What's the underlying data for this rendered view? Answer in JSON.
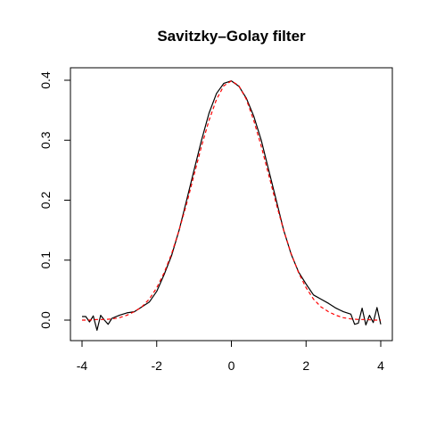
{
  "chart_data": {
    "type": "line",
    "title": "Savitzky–Golay filter",
    "xlabel": "",
    "ylabel": "",
    "xlim": [
      -4,
      4
    ],
    "ylim": [
      0,
      0.4
    ],
    "x_ticks": [
      -4,
      -2,
      0,
      2,
      4
    ],
    "y_ticks": [
      0.0,
      0.1,
      0.2,
      0.3,
      0.4
    ],
    "x_tick_labels": [
      "-4",
      "-2",
      "0",
      "2",
      "4"
    ],
    "y_tick_labels": [
      "0.0",
      "0.1",
      "0.2",
      "0.3",
      "0.4"
    ],
    "grid": false,
    "legend": "none",
    "series": [
      {
        "style": "solid",
        "color": "#000000",
        "x": [
          -4.0,
          -3.9,
          -3.8,
          -3.7,
          -3.6,
          -3.5,
          -3.4,
          -3.3,
          -3.2,
          -3.0,
          -2.8,
          -2.6,
          -2.4,
          -2.2,
          -2.0,
          -1.8,
          -1.6,
          -1.4,
          -1.2,
          -1.0,
          -0.8,
          -0.6,
          -0.4,
          -0.2,
          0.0,
          0.2,
          0.4,
          0.6,
          0.8,
          1.0,
          1.2,
          1.4,
          1.6,
          1.8,
          2.0,
          2.2,
          2.4,
          2.6,
          2.8,
          3.0,
          3.2,
          3.3,
          3.4,
          3.5,
          3.6,
          3.7,
          3.8,
          3.9,
          4.0
        ],
        "y": [
          0.006,
          0.006,
          -0.003,
          0.007,
          -0.017,
          0.008,
          0.0,
          -0.007,
          0.003,
          0.008,
          0.012,
          0.014,
          0.022,
          0.03,
          0.048,
          0.076,
          0.108,
          0.15,
          0.2,
          0.25,
          0.3,
          0.345,
          0.378,
          0.395,
          0.399,
          0.39,
          0.37,
          0.34,
          0.3,
          0.25,
          0.2,
          0.15,
          0.11,
          0.08,
          0.06,
          0.042,
          0.035,
          0.028,
          0.02,
          0.014,
          0.01,
          -0.007,
          -0.005,
          0.02,
          -0.008,
          0.008,
          -0.004,
          0.021,
          -0.007
        ]
      },
      {
        "style": "dashed",
        "color": "#ff0000",
        "x": [
          -4.0,
          -3.8,
          -3.6,
          -3.4,
          -3.2,
          -3.0,
          -2.8,
          -2.6,
          -2.4,
          -2.2,
          -2.0,
          -1.8,
          -1.6,
          -1.4,
          -1.2,
          -1.0,
          -0.8,
          -0.6,
          -0.4,
          -0.2,
          0.0,
          0.2,
          0.4,
          0.6,
          0.8,
          1.0,
          1.2,
          1.4,
          1.6,
          1.8,
          2.0,
          2.2,
          2.4,
          2.6,
          2.8,
          3.0,
          3.2,
          3.4,
          3.6,
          3.8,
          4.0
        ],
        "y": [
          0.0,
          0.0,
          0.001,
          0.001,
          0.002,
          0.004,
          0.008,
          0.014,
          0.022,
          0.035,
          0.054,
          0.079,
          0.111,
          0.15,
          0.194,
          0.242,
          0.29,
          0.333,
          0.368,
          0.391,
          0.399,
          0.391,
          0.368,
          0.333,
          0.29,
          0.242,
          0.194,
          0.15,
          0.111,
          0.079,
          0.054,
          0.035,
          0.022,
          0.014,
          0.008,
          0.004,
          0.002,
          0.001,
          0.001,
          0.0,
          0.0
        ]
      }
    ]
  }
}
